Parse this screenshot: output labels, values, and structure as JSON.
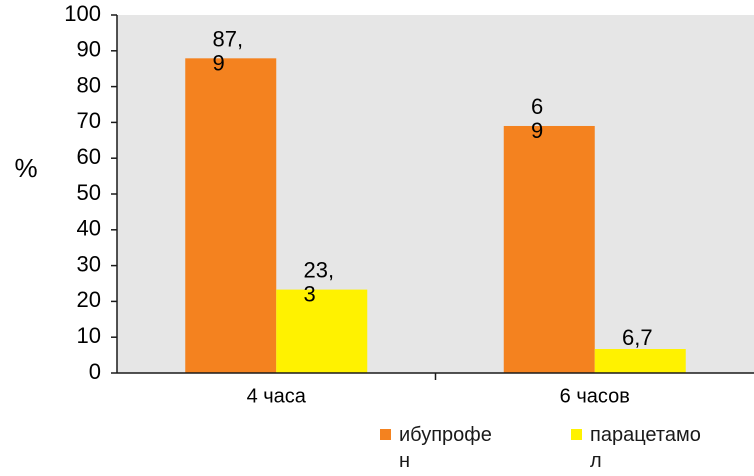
{
  "chart_data": {
    "type": "bar",
    "categories": [
      "4 часа",
      "6 часов"
    ],
    "series": [
      {
        "name": "ибупрофен",
        "legend_lines": [
          "ибупрофе",
          "н"
        ],
        "color": "#F4821F",
        "values": [
          87.9,
          69
        ],
        "labels": [
          [
            "87,",
            "9"
          ],
          [
            "6",
            "9"
          ]
        ]
      },
      {
        "name": "парацетамол",
        "legend_lines": [
          "парацетамо",
          "л"
        ],
        "color": "#FFF200",
        "values": [
          23.3,
          6.7
        ],
        "labels": [
          [
            "23,",
            "3"
          ],
          [
            "6,7"
          ]
        ]
      }
    ],
    "ylabel": "%",
    "ylim": [
      0,
      100
    ],
    "yticks": [
      0,
      10,
      20,
      30,
      40,
      50,
      60,
      70,
      80,
      90,
      100
    ],
    "plot_background": "#E6E6E6",
    "grid": false,
    "legend_position": "bottom-right"
  }
}
